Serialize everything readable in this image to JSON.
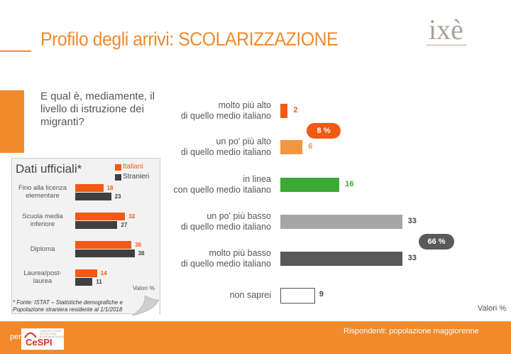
{
  "title": "Profilo degli arrivi: SCOLARIZZAZIONE",
  "logo": "ixè",
  "question": "E qual è, mediamente, il livello di istruzione dei migranti?",
  "valori_label": "Valori %",
  "footer": {
    "per": "per",
    "cespi": "CeSPI",
    "cespi_small": "CENTRO STUDI DI POLITICA INTERNAZIONALE",
    "respondents": "Rispondenti: popolazione maggiorenne"
  },
  "colors": {
    "accent": "#f08a2c",
    "orange_dark": "#f05a14",
    "orange_light": "#f39640",
    "green": "#3aaa35",
    "grey_light": "#a6a6a6",
    "grey_dark": "#595959"
  },
  "chart_data": [
    {
      "type": "bar",
      "orientation": "horizontal",
      "categories": [
        [
          "molto più alto",
          "di quello medio italiano"
        ],
        [
          "un po' più alto",
          "di quello medio italiano"
        ],
        [
          "in linea",
          "con quello medio italiano"
        ],
        [
          "un po' più basso",
          "di quello medio italiano"
        ],
        [
          "molto più basso",
          "di quello medio italiano"
        ],
        [
          "non saprei"
        ]
      ],
      "values": [
        2,
        6,
        16,
        33,
        33,
        9
      ],
      "bar_colors": [
        "#f05a14",
        "#f39640",
        "#3aaa35",
        "#a6a6a6",
        "#595959",
        "#ffffff"
      ],
      "value_colors": [
        "#f05a14",
        "#f39640",
        "#3aaa35",
        "#444444",
        "#444444",
        "#444444"
      ],
      "groups": [
        {
          "label": "8 %",
          "categories": [
            0,
            1
          ],
          "color": "#f05a14"
        },
        {
          "label": "66 %",
          "categories": [
            3,
            4
          ],
          "color": "#595959"
        }
      ],
      "xlabel": "Valori %"
    },
    {
      "type": "bar",
      "orientation": "horizontal",
      "title": "Dati ufficiali*",
      "categories": [
        [
          "Fino alla licenza",
          "elementare"
        ],
        [
          "Scuola media",
          "inferiore"
        ],
        [
          "Diploma"
        ],
        [
          "Laurea/post-",
          "laurea"
        ]
      ],
      "series": [
        {
          "name": "Italiani",
          "values": [
            18,
            32,
            36,
            14
          ],
          "color": "#f05a14"
        },
        {
          "name": "Stranieri",
          "values": [
            23,
            27,
            38,
            11
          ],
          "color": "#404040"
        }
      ],
      "xlabel": "Valori %",
      "source": "* Fonte: ISTAT – Statistiche demografiche e Popolazione straniera residente al 1/1/2018"
    }
  ]
}
